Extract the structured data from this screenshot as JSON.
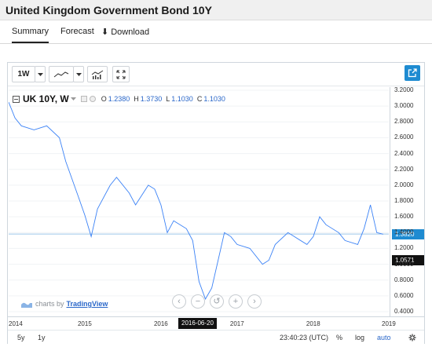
{
  "title": "United Kingdom Government Bond 10Y",
  "tabs": [
    {
      "label": "Summary"
    },
    {
      "label": "Forecast"
    },
    {
      "label": "Download"
    }
  ],
  "toolbar": {
    "interval": "1W",
    "icons": [
      "interval-dropdown",
      "line-style",
      "chart-type-dropdown",
      "indicators",
      "fullscreen-expand",
      "popout"
    ]
  },
  "legend": {
    "symbol": "UK 10Y, W",
    "o_key": "O",
    "o": "1.2380",
    "h_key": "H",
    "h": "1.3730",
    "l_key": "L",
    "l": "1.1030",
    "c_key": "C",
    "c": "1.1030"
  },
  "price_labels": {
    "current": "1.3820",
    "low": "1.0571"
  },
  "time_axis": {
    "cursor_label": "2016-06-20"
  },
  "bottom_bar": {
    "range_5y": "5y",
    "range_1y": "1y",
    "clock": "23:40:23 (UTC)",
    "percent": "%",
    "log": "log",
    "auto": "auto"
  },
  "brand": {
    "prefix": "charts by",
    "name": "TradingView"
  },
  "colors": {
    "line": "#3b82f6",
    "price_label_bg": "#1e8bd1",
    "low_label_bg": "#111111",
    "accent": "#2a67c9"
  },
  "chart_data": {
    "type": "line",
    "series": [
      {
        "x": [
          "2014-01",
          "2014-02",
          "2014-03",
          "2014-05",
          "2014-07",
          "2014-09",
          "2014-10",
          "2014-12",
          "2015-01",
          "2015-02",
          "2015-03",
          "2015-05",
          "2015-06",
          "2015-08",
          "2015-09",
          "2015-11",
          "2015-12",
          "2016-01",
          "2016-02",
          "2016-03",
          "2016-05",
          "2016-06",
          "2016-07",
          "2016-08",
          "2016-09",
          "2016-10",
          "2016-11",
          "2016-12",
          "2017-01",
          "2017-03",
          "2017-05",
          "2017-06",
          "2017-07",
          "2017-09",
          "2017-10",
          "2017-12",
          "2018-01",
          "2018-02",
          "2018-03",
          "2018-05",
          "2018-06",
          "2018-08",
          "2018-09",
          "2018-10",
          "2018-11",
          "2018-12"
        ],
        "values": [
          3.05,
          2.85,
          2.75,
          2.7,
          2.75,
          2.6,
          2.3,
          1.85,
          1.62,
          1.35,
          1.7,
          2.0,
          2.1,
          1.9,
          1.75,
          2.0,
          1.95,
          1.75,
          1.4,
          1.55,
          1.45,
          1.3,
          0.78,
          0.56,
          0.7,
          1.05,
          1.4,
          1.35,
          1.25,
          1.2,
          1.0,
          1.05,
          1.25,
          1.4,
          1.35,
          1.25,
          1.35,
          1.6,
          1.5,
          1.4,
          1.3,
          1.25,
          1.45,
          1.75,
          1.4,
          1.38
        ]
      }
    ],
    "price_axis_ticks": [
      "3.2000",
      "3.0000",
      "2.8000",
      "2.6000",
      "2.4000",
      "2.2000",
      "2.0000",
      "1.8000",
      "1.6000",
      "1.4000",
      "1.2000",
      "1.0000",
      "0.8000",
      "0.6000",
      "0.4000"
    ],
    "time_axis_ticks": [
      "2014",
      "2015",
      "2016",
      "2017",
      "2018",
      "2019"
    ],
    "ylim": [
      0.4,
      3.2
    ],
    "xlim": [
      "2014",
      "2019"
    ]
  }
}
